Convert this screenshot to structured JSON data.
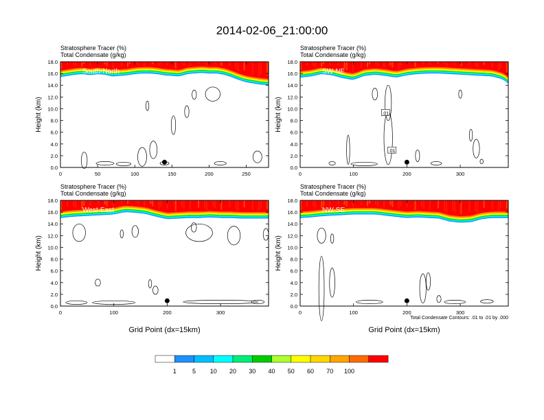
{
  "title": "2014-02-06_21:00:00",
  "chart_data": [
    {
      "type": "heatmap",
      "panel": "South-North",
      "label": "South-North",
      "field_title": "Stratosphere Tracer   (%)",
      "overlay_title": "Total Condensate   (g/kg)",
      "ylabel": "Height (km)",
      "xlabel": "",
      "xlim": [
        0,
        280
      ],
      "ylim": [
        0,
        18
      ],
      "xticks": [
        "0",
        "50",
        "100",
        "150",
        "200",
        "250"
      ],
      "yticks": [
        "0.0",
        "2.0",
        "4.0",
        "6.0",
        "8.0",
        "10.0",
        "12.0",
        "14.0",
        "16.0",
        "18.0"
      ],
      "tracer_base_km": [
        [
          0,
          15.4
        ],
        [
          10,
          15.6
        ],
        [
          20,
          15.8
        ],
        [
          30,
          15.9
        ],
        [
          40,
          15.7
        ],
        [
          50,
          15.9
        ],
        [
          60,
          15.8
        ],
        [
          70,
          15.5
        ],
        [
          80,
          15.6
        ],
        [
          90,
          15.7
        ],
        [
          100,
          15.9
        ],
        [
          110,
          16.0
        ],
        [
          120,
          16.0
        ],
        [
          130,
          15.9
        ],
        [
          140,
          15.7
        ],
        [
          150,
          15.6
        ],
        [
          160,
          15.5
        ],
        [
          170,
          15.9
        ],
        [
          180,
          16.0
        ],
        [
          190,
          16.1
        ],
        [
          200,
          16.0
        ],
        [
          210,
          16.0
        ],
        [
          220,
          15.8
        ],
        [
          230,
          15.4
        ],
        [
          240,
          14.9
        ],
        [
          250,
          14.5
        ],
        [
          260,
          14.3
        ],
        [
          270,
          14.1
        ],
        [
          280,
          14.0
        ]
      ],
      "marker_x": 140
    },
    {
      "type": "heatmap",
      "panel": "SW-NE",
      "label": "SW-NE",
      "field_title": "Stratosphere Tracer   (%)",
      "overlay_title": "Total Condensate   (g/kg)",
      "ylabel": "Height (km)",
      "xlabel": "",
      "xlim": [
        0,
        390
      ],
      "ylim": [
        0,
        18
      ],
      "xticks": [
        "0",
        "100",
        "200",
        "300"
      ],
      "yticks": [
        "0.0",
        "2.0",
        "4.0",
        "6.0",
        "8.0",
        "10.0",
        "12.0",
        "14.0",
        "16.0",
        "18.0"
      ],
      "tracer_base_km": [
        [
          0,
          15.3
        ],
        [
          20,
          15.5
        ],
        [
          40,
          15.9
        ],
        [
          60,
          15.7
        ],
        [
          80,
          15.2
        ],
        [
          100,
          14.9
        ],
        [
          120,
          15.6
        ],
        [
          140,
          15.8
        ],
        [
          160,
          15.6
        ],
        [
          180,
          15.3
        ],
        [
          200,
          15.7
        ],
        [
          220,
          15.9
        ],
        [
          240,
          16.0
        ],
        [
          260,
          16.0
        ],
        [
          280,
          15.9
        ],
        [
          300,
          15.8
        ],
        [
          320,
          15.7
        ],
        [
          340,
          15.6
        ],
        [
          360,
          15.5
        ],
        [
          380,
          15.0
        ],
        [
          390,
          14.3
        ]
      ],
      "contour_labels": [
        ".01",
        ".01"
      ],
      "marker_x": 200
    },
    {
      "type": "heatmap",
      "panel": "West-East",
      "label": "West-East",
      "field_title": "Stratosphere Tracer   (%)",
      "overlay_title": "Total Condensate   (g/kg)",
      "ylabel": "Height (km)",
      "xlabel": "Grid Point (dx=15km)",
      "xlim": [
        0,
        390
      ],
      "ylim": [
        0,
        18
      ],
      "xticks": [
        "0",
        "100",
        "200",
        "300"
      ],
      "yticks": [
        "0.0",
        "2.0",
        "4.0",
        "6.0",
        "8.0",
        "10.0",
        "12.0",
        "14.0",
        "16.0",
        "18.0"
      ],
      "tracer_base_km": [
        [
          0,
          15.0
        ],
        [
          20,
          15.2
        ],
        [
          40,
          15.3
        ],
        [
          60,
          15.4
        ],
        [
          80,
          15.5
        ],
        [
          100,
          15.6
        ],
        [
          120,
          16.0
        ],
        [
          140,
          15.9
        ],
        [
          160,
          15.7
        ],
        [
          180,
          15.2
        ],
        [
          200,
          14.8
        ],
        [
          220,
          14.9
        ],
        [
          240,
          15.0
        ],
        [
          260,
          15.0
        ],
        [
          280,
          15.1
        ],
        [
          300,
          15.0
        ],
        [
          320,
          15.0
        ],
        [
          340,
          14.9
        ],
        [
          360,
          14.9
        ],
        [
          380,
          14.9
        ],
        [
          390,
          14.9
        ]
      ],
      "marker_x": 200
    },
    {
      "type": "heatmap",
      "panel": "NW-SE",
      "label": "NW-SE",
      "field_title": "Stratosphere Tracer   (%)",
      "overlay_title": "Total Condensate   (g/kg)",
      "ylabel": "Height (km)",
      "xlabel": "Grid Point (dx=15km)",
      "xlim": [
        0,
        390
      ],
      "ylim": [
        0,
        18
      ],
      "xticks": [
        "0",
        "100",
        "200",
        "300"
      ],
      "yticks": [
        "0.0",
        "2.0",
        "4.0",
        "6.0",
        "8.0",
        "10.0",
        "12.0",
        "14.0",
        "16.0",
        "18.0"
      ],
      "tracer_base_km": [
        [
          0,
          15.0
        ],
        [
          20,
          15.1
        ],
        [
          40,
          15.3
        ],
        [
          60,
          15.4
        ],
        [
          80,
          15.5
        ],
        [
          100,
          15.6
        ],
        [
          120,
          15.6
        ],
        [
          140,
          15.6
        ],
        [
          160,
          15.4
        ],
        [
          180,
          15.2
        ],
        [
          200,
          15.0
        ],
        [
          220,
          15.1
        ],
        [
          240,
          15.0
        ],
        [
          260,
          14.9
        ],
        [
          280,
          14.4
        ],
        [
          300,
          14.2
        ],
        [
          320,
          14.3
        ],
        [
          340,
          14.8
        ],
        [
          360,
          15.0
        ],
        [
          390,
          15.0
        ]
      ],
      "contour_note": "Total Condensate Contours: .01 to .01 by .000",
      "marker_x": 200
    }
  ],
  "colorbar": {
    "labels": [
      "1",
      "5",
      "10",
      "20",
      "30",
      "40",
      "50",
      "60",
      "70",
      "100"
    ],
    "colors": [
      "#ffffff",
      "#1e90ff",
      "#00bfff",
      "#00ffff",
      "#00ee76",
      "#00cd00",
      "#adff2f",
      "#ffff00",
      "#ffd700",
      "#ffa500",
      "#ff6a00",
      "#ff0000"
    ]
  }
}
